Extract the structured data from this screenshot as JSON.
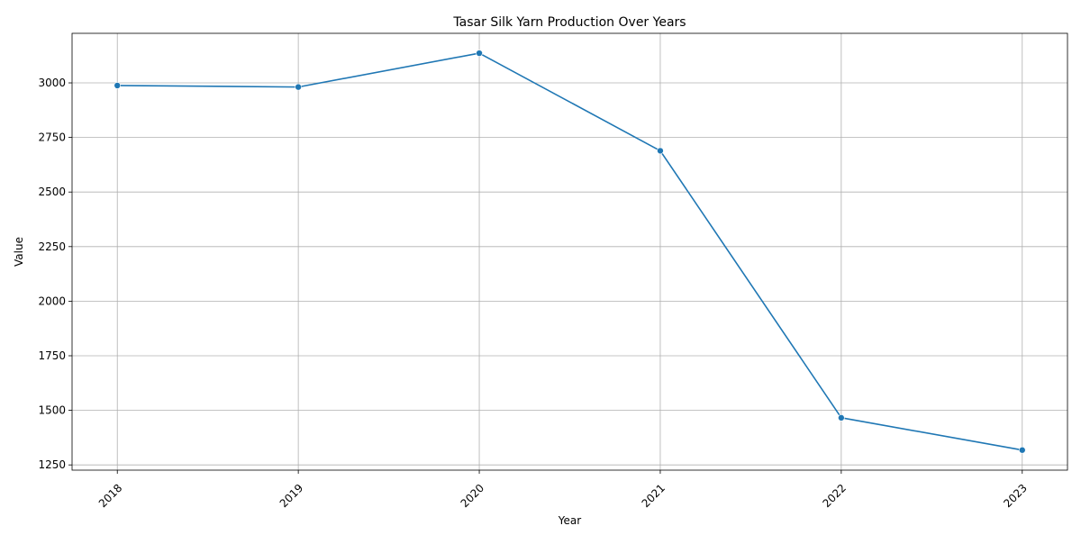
{
  "chart_data": {
    "type": "line",
    "title": "Tasar Silk Yarn Production Over Years",
    "xlabel": "Year",
    "ylabel": "Value",
    "categories": [
      "2018",
      "2019",
      "2020",
      "2021",
      "2022",
      "2023"
    ],
    "series": [
      {
        "values": [
          2988,
          2981,
          3136,
          2689,
          1466,
          1318
        ]
      }
    ],
    "xlim": [
      2017.75,
      2023.25
    ],
    "ylim": [
      1226,
      3227
    ],
    "yticks": [
      1250,
      1500,
      1750,
      2000,
      2250,
      2500,
      2750,
      3000
    ],
    "ytick_labels": [
      "1250",
      "1500",
      "1750",
      "2000",
      "2250",
      "2500",
      "2750",
      "3000"
    ],
    "xtick_labels": [
      "2018",
      "2019",
      "2020",
      "2021",
      "2022",
      "2023"
    ],
    "xtick_rotation": 45,
    "grid": true,
    "markers": true,
    "legend": "none",
    "colors": {
      "line": "#1f77b4",
      "grid": "#b0b0b0",
      "axis": "#000000"
    }
  }
}
